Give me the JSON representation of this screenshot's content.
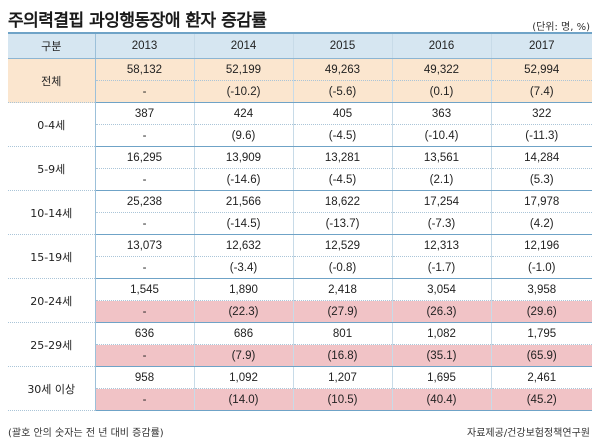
{
  "title": "주의력결핍 과잉행동장애 환자 증감률",
  "unit": "(단위: 명, %)",
  "header": {
    "label": "구분",
    "years": [
      "2013",
      "2014",
      "2015",
      "2016",
      "2017"
    ]
  },
  "groups": [
    {
      "label": "전체",
      "counts": [
        "58,132",
        "52,199",
        "49,263",
        "49,322",
        "52,994"
      ],
      "changes": [
        "-",
        "(-10.2)",
        "(-5.6)",
        "(0.1)",
        "(7.4)"
      ]
    },
    {
      "label": "0-4세",
      "counts": [
        "387",
        "424",
        "405",
        "363",
        "322"
      ],
      "changes": [
        "-",
        "(9.6)",
        "(-4.5)",
        "(-10.4)",
        "(-11.3)"
      ]
    },
    {
      "label": "5-9세",
      "counts": [
        "16,295",
        "13,909",
        "13,281",
        "13,561",
        "14,284"
      ],
      "changes": [
        "-",
        "(-14.6)",
        "(-4.5)",
        "(2.1)",
        "(5.3)"
      ]
    },
    {
      "label": "10-14세",
      "counts": [
        "25,238",
        "21,566",
        "18,622",
        "17,254",
        "17,978"
      ],
      "changes": [
        "-",
        "(-14.5)",
        "(-13.7)",
        "(-7.3)",
        "(4.2)"
      ]
    },
    {
      "label": "15-19세",
      "counts": [
        "13,073",
        "12,632",
        "12,529",
        "12,313",
        "12,196"
      ],
      "changes": [
        "-",
        "(-3.4)",
        "(-0.8)",
        "(-1.7)",
        "(-1.0)"
      ]
    },
    {
      "label": "20-24세",
      "counts": [
        "1,545",
        "1,890",
        "2,418",
        "3,054",
        "3,958"
      ],
      "changes": [
        "-",
        "(22.3)",
        "(27.9)",
        "(26.3)",
        "(29.6)"
      ]
    },
    {
      "label": "25-29세",
      "counts": [
        "636",
        "686",
        "801",
        "1,082",
        "1,795"
      ],
      "changes": [
        "-",
        "(7.9)",
        "(16.8)",
        "(35.1)",
        "(65.9)"
      ]
    },
    {
      "label": "30세 이상",
      "counts": [
        "958",
        "1,092",
        "1,207",
        "1,695",
        "2,461"
      ],
      "changes": [
        "-",
        "(14.0)",
        "(10.5)",
        "(40.4)",
        "(45.2)"
      ]
    }
  ],
  "footnote": "(괄호 안의 숫자는 전 년 대비 증감률)",
  "source": "자료제공/건강보험정책연구원",
  "colors": {
    "header_bg": "#d6e6f1",
    "total_bg": "#fbe6cf",
    "highlight_bg": "#f1c3c6",
    "border": "#6fa3c7"
  }
}
